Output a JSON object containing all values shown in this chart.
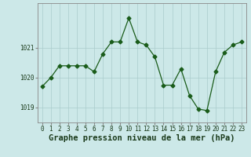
{
  "x": [
    0,
    1,
    2,
    3,
    4,
    5,
    6,
    7,
    8,
    9,
    10,
    11,
    12,
    13,
    14,
    15,
    16,
    17,
    18,
    19,
    20,
    21,
    22,
    23
  ],
  "y": [
    1019.7,
    1020.0,
    1020.4,
    1020.4,
    1020.4,
    1020.4,
    1020.2,
    1020.8,
    1021.2,
    1021.2,
    1022.0,
    1021.2,
    1021.1,
    1020.7,
    1019.75,
    1019.75,
    1020.3,
    1019.4,
    1018.95,
    1018.9,
    1020.2,
    1020.85,
    1021.1,
    1021.2
  ],
  "line_color": "#1a5c1a",
  "marker": "D",
  "marker_size": 2.5,
  "bg_color": "#cce8e8",
  "grid_color": "#aacccc",
  "xlabel": "Graphe pression niveau de la mer (hPa)",
  "xlabel_fontsize": 7.5,
  "ytick_labels": [
    "1019",
    "1020",
    "1021"
  ],
  "yticks": [
    1019,
    1020,
    1021
  ],
  "ylim": [
    1018.5,
    1022.5
  ],
  "xlim": [
    -0.5,
    23.5
  ],
  "xticks": [
    0,
    1,
    2,
    3,
    4,
    5,
    6,
    7,
    8,
    9,
    10,
    11,
    12,
    13,
    14,
    15,
    16,
    17,
    18,
    19,
    20,
    21,
    22,
    23
  ],
  "tick_fontsize": 5.5,
  "spine_color": "#888888"
}
